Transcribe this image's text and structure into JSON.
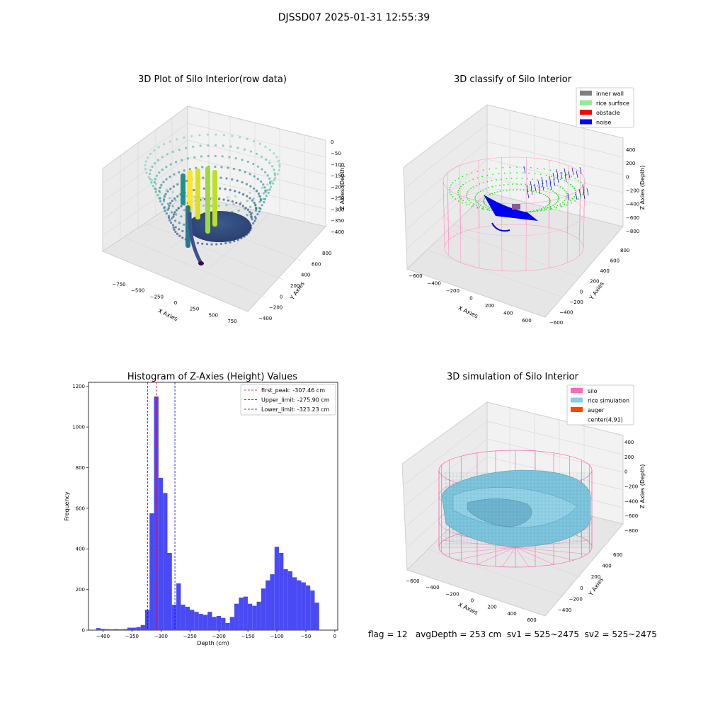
{
  "figure": {
    "suptitle": "DJSSD07 2025-01-31 12:55:39",
    "footer": "flag = 12   avgDepth = 253 cm  sv1 = 525~2475  sv2 = 525~2475"
  },
  "chart_data": [
    {
      "type": "scatter",
      "projection": "3d",
      "title": "3D Plot of Silo Interior(row data)",
      "xlabel": "X Axies",
      "ylabel": "Y Axies",
      "zlabel": "Z Axies (Depth)",
      "xticks": [
        -750,
        -500,
        -250,
        0,
        250,
        500,
        750
      ],
      "yticks": [
        -400,
        -200,
        0,
        200,
        400,
        600,
        800
      ],
      "zticks": [
        0,
        -50,
        -100,
        -150,
        -200,
        -250,
        -300,
        -350,
        -400
      ],
      "xlim": [
        -850,
        850
      ],
      "ylim": [
        -450,
        900
      ],
      "zlim": [
        -420,
        0
      ],
      "colormap": "viridis",
      "grid": true
    },
    {
      "type": "scatter",
      "projection": "3d",
      "title": "3D classify of Silo Interior",
      "xlabel": "X Axies",
      "ylabel": "Y Axies",
      "zlabel": "Z Axies (Depth)",
      "xticks": [
        -600,
        -400,
        -200,
        0,
        200,
        400,
        600
      ],
      "yticks": [
        -600,
        -400,
        -200,
        0,
        200,
        400,
        600,
        800
      ],
      "zticks": [
        400,
        200,
        0,
        -200,
        -400,
        -600,
        -800
      ],
      "legend": [
        {
          "label": "inner wall",
          "color": "#808080"
        },
        {
          "label": "rice surface",
          "color": "#90ee90"
        },
        {
          "label": "obstacle",
          "color": "#ff0000"
        },
        {
          "label": "noise",
          "color": "#0000ff"
        }
      ],
      "legend_loc": "upper right",
      "grid": true
    },
    {
      "type": "bar",
      "title": "Histogram of Z-Axies (Height) Values",
      "xlabel": "Depth (cm)",
      "ylabel": "Frequency",
      "xlim": [
        -425,
        5
      ],
      "ylim": [
        0,
        1220
      ],
      "xticks": [
        -400,
        -350,
        -300,
        -250,
        -200,
        -150,
        -100,
        -50,
        0
      ],
      "yticks": [
        0,
        200,
        400,
        600,
        800,
        1000,
        1200
      ],
      "bar_color": "#4a4af5",
      "bin_width": 7.7,
      "bins_start": [
        -412,
        -404.3,
        -396.6,
        -388.9,
        -381.2,
        -373.5,
        -365.8,
        -358.1,
        -350.4,
        -342.7,
        -335,
        -327.3,
        -319.6,
        -311.9,
        -304.2,
        -296.5,
        -288.8,
        -281.1,
        -273.4,
        -265.7,
        -258,
        -250.3,
        -242.6,
        -234.9,
        -227.2,
        -219.5,
        -211.8,
        -204.1,
        -196.4,
        -188.7,
        -181,
        -173.3,
        -165.6,
        -157.9,
        -150.2,
        -142.5,
        -134.8,
        -127.1,
        -119.4,
        -111.7,
        -104,
        -96.3,
        -88.6,
        -80.9,
        -73.2,
        -65.5,
        -57.8,
        -50.1,
        -42.4,
        -34.7,
        -27
      ],
      "values": [
        10,
        6,
        5,
        4,
        5,
        4,
        5,
        12,
        12,
        15,
        25,
        100,
        575,
        1150,
        750,
        675,
        380,
        125,
        230,
        125,
        115,
        100,
        90,
        80,
        75,
        90,
        65,
        70,
        60,
        35,
        65,
        130,
        160,
        165,
        130,
        120,
        140,
        205,
        245,
        275,
        410,
        380,
        300,
        290,
        260,
        245,
        235,
        220,
        195,
        135,
        0
      ],
      "vlines": [
        {
          "x": -307.46,
          "color": "#ff0000",
          "label": "first_peak: -307.46 cm"
        },
        {
          "x": -275.9,
          "color": "#0000ff",
          "label": "Upper_limit: -275.90 cm"
        },
        {
          "x": -323.23,
          "color": "#0000ff",
          "label": "Lower_limit: -323.23 cm"
        }
      ],
      "legend_loc": "upper right"
    },
    {
      "type": "surface",
      "projection": "3d",
      "title": "3D simulation of Silo Interior",
      "xlabel": "X Axies",
      "ylabel": "Y Axies",
      "zlabel": "Z Axies (Depth)",
      "xticks": [
        -600,
        -400,
        -200,
        0,
        200,
        400,
        600
      ],
      "yticks": [
        -400,
        -200,
        0,
        200,
        400,
        600
      ],
      "zticks": [
        400,
        200,
        0,
        -200,
        -400,
        -600,
        -800
      ],
      "legend": [
        {
          "label": "silo",
          "color": "#ff69b4"
        },
        {
          "label": "rice simulation",
          "color": "#87ceeb"
        },
        {
          "label": "auger",
          "color": "#ff4500"
        },
        {
          "label": "center(4,91)",
          "color": "#ffffff"
        }
      ],
      "legend_loc": "upper right",
      "grid": true
    }
  ]
}
